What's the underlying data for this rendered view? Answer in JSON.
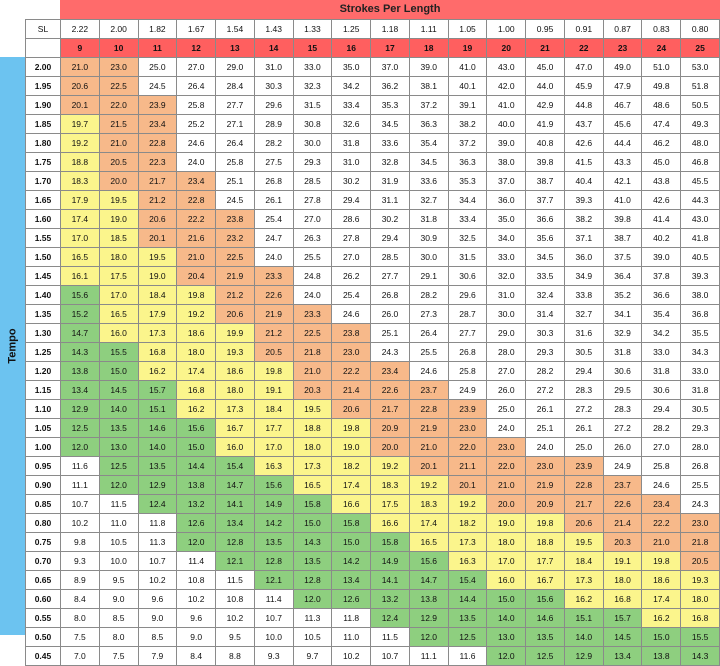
{
  "title": "Strokes Per Length",
  "axis_label": "Tempo",
  "sl_label": "SL",
  "sl_values": [
    "2.22",
    "2.00",
    "1.82",
    "1.67",
    "1.54",
    "1.43",
    "1.33",
    "1.25",
    "1.18",
    "1.11",
    "1.05",
    "1.00",
    "0.95",
    "0.91",
    "0.87",
    "0.83",
    "0.80"
  ],
  "strokes": [
    "9",
    "10",
    "11",
    "12",
    "13",
    "14",
    "15",
    "16",
    "17",
    "18",
    "19",
    "20",
    "21",
    "22",
    "23",
    "24",
    "25"
  ],
  "colors": {
    "white": "#ffffff",
    "yellow": "#fbf58c",
    "orange": "#f7b98a",
    "green": "#8ecf7f",
    "header_red": "#ff5f5f",
    "tempo_blue": "#6cc3f0"
  },
  "rows": [
    {
      "tempo": "2.00",
      "values": [
        "21.0",
        "23.0",
        "25.0",
        "27.0",
        "29.0",
        "31.0",
        "33.0",
        "35.0",
        "37.0",
        "39.0",
        "41.0",
        "43.0",
        "45.0",
        "47.0",
        "49.0",
        "51.0",
        "53.0"
      ]
    },
    {
      "tempo": "1.95",
      "values": [
        "20.6",
        "22.5",
        "24.5",
        "26.4",
        "28.4",
        "30.3",
        "32.3",
        "34.2",
        "36.2",
        "38.1",
        "40.1",
        "42.0",
        "44.0",
        "45.9",
        "47.9",
        "49.8",
        "51.8"
      ]
    },
    {
      "tempo": "1.90",
      "values": [
        "20.1",
        "22.0",
        "23.9",
        "25.8",
        "27.7",
        "29.6",
        "31.5",
        "33.4",
        "35.3",
        "37.2",
        "39.1",
        "41.0",
        "42.9",
        "44.8",
        "46.7",
        "48.6",
        "50.5"
      ]
    },
    {
      "tempo": "1.85",
      "values": [
        "19.7",
        "21.5",
        "23.4",
        "25.2",
        "27.1",
        "28.9",
        "30.8",
        "32.6",
        "34.5",
        "36.3",
        "38.2",
        "40.0",
        "41.9",
        "43.7",
        "45.6",
        "47.4",
        "49.3"
      ]
    },
    {
      "tempo": "1.80",
      "values": [
        "19.2",
        "21.0",
        "22.8",
        "24.6",
        "26.4",
        "28.2",
        "30.0",
        "31.8",
        "33.6",
        "35.4",
        "37.2",
        "39.0",
        "40.8",
        "42.6",
        "44.4",
        "46.2",
        "48.0"
      ]
    },
    {
      "tempo": "1.75",
      "values": [
        "18.8",
        "20.5",
        "22.3",
        "24.0",
        "25.8",
        "27.5",
        "29.3",
        "31.0",
        "32.8",
        "34.5",
        "36.3",
        "38.0",
        "39.8",
        "41.5",
        "43.3",
        "45.0",
        "46.8"
      ]
    },
    {
      "tempo": "1.70",
      "values": [
        "18.3",
        "20.0",
        "21.7",
        "23.4",
        "25.1",
        "26.8",
        "28.5",
        "30.2",
        "31.9",
        "33.6",
        "35.3",
        "37.0",
        "38.7",
        "40.4",
        "42.1",
        "43.8",
        "45.5"
      ]
    },
    {
      "tempo": "1.65",
      "values": [
        "17.9",
        "19.5",
        "21.2",
        "22.8",
        "24.5",
        "26.1",
        "27.8",
        "29.4",
        "31.1",
        "32.7",
        "34.4",
        "36.0",
        "37.7",
        "39.3",
        "41.0",
        "42.6",
        "44.3"
      ]
    },
    {
      "tempo": "1.60",
      "values": [
        "17.4",
        "19.0",
        "20.6",
        "22.2",
        "23.8",
        "25.4",
        "27.0",
        "28.6",
        "30.2",
        "31.8",
        "33.4",
        "35.0",
        "36.6",
        "38.2",
        "39.8",
        "41.4",
        "43.0"
      ]
    },
    {
      "tempo": "1.55",
      "values": [
        "17.0",
        "18.5",
        "20.1",
        "21.6",
        "23.2",
        "24.7",
        "26.3",
        "27.8",
        "29.4",
        "30.9",
        "32.5",
        "34.0",
        "35.6",
        "37.1",
        "38.7",
        "40.2",
        "41.8"
      ]
    },
    {
      "tempo": "1.50",
      "values": [
        "16.5",
        "18.0",
        "19.5",
        "21.0",
        "22.5",
        "24.0",
        "25.5",
        "27.0",
        "28.5",
        "30.0",
        "31.5",
        "33.0",
        "34.5",
        "36.0",
        "37.5",
        "39.0",
        "40.5"
      ]
    },
    {
      "tempo": "1.45",
      "values": [
        "16.1",
        "17.5",
        "19.0",
        "20.4",
        "21.9",
        "23.3",
        "24.8",
        "26.2",
        "27.7",
        "29.1",
        "30.6",
        "32.0",
        "33.5",
        "34.9",
        "36.4",
        "37.8",
        "39.3"
      ]
    },
    {
      "tempo": "1.40",
      "values": [
        "15.6",
        "17.0",
        "18.4",
        "19.8",
        "21.2",
        "22.6",
        "24.0",
        "25.4",
        "26.8",
        "28.2",
        "29.6",
        "31.0",
        "32.4",
        "33.8",
        "35.2",
        "36.6",
        "38.0"
      ]
    },
    {
      "tempo": "1.35",
      "values": [
        "15.2",
        "16.5",
        "17.9",
        "19.2",
        "20.6",
        "21.9",
        "23.3",
        "24.6",
        "26.0",
        "27.3",
        "28.7",
        "30.0",
        "31.4",
        "32.7",
        "34.1",
        "35.4",
        "36.8"
      ]
    },
    {
      "tempo": "1.30",
      "values": [
        "14.7",
        "16.0",
        "17.3",
        "18.6",
        "19.9",
        "21.2",
        "22.5",
        "23.8",
        "25.1",
        "26.4",
        "27.7",
        "29.0",
        "30.3",
        "31.6",
        "32.9",
        "34.2",
        "35.5"
      ]
    },
    {
      "tempo": "1.25",
      "values": [
        "14.3",
        "15.5",
        "16.8",
        "18.0",
        "19.3",
        "20.5",
        "21.8",
        "23.0",
        "24.3",
        "25.5",
        "26.8",
        "28.0",
        "29.3",
        "30.5",
        "31.8",
        "33.0",
        "34.3"
      ]
    },
    {
      "tempo": "1.20",
      "values": [
        "13.8",
        "15.0",
        "16.2",
        "17.4",
        "18.6",
        "19.8",
        "21.0",
        "22.2",
        "23.4",
        "24.6",
        "25.8",
        "27.0",
        "28.2",
        "29.4",
        "30.6",
        "31.8",
        "33.0"
      ]
    },
    {
      "tempo": "1.15",
      "values": [
        "13.4",
        "14.5",
        "15.7",
        "16.8",
        "18.0",
        "19.1",
        "20.3",
        "21.4",
        "22.6",
        "23.7",
        "24.9",
        "26.0",
        "27.2",
        "28.3",
        "29.5",
        "30.6",
        "31.8"
      ]
    },
    {
      "tempo": "1.10",
      "values": [
        "12.9",
        "14.0",
        "15.1",
        "16.2",
        "17.3",
        "18.4",
        "19.5",
        "20.6",
        "21.7",
        "22.8",
        "23.9",
        "25.0",
        "26.1",
        "27.2",
        "28.3",
        "29.4",
        "30.5"
      ]
    },
    {
      "tempo": "1.05",
      "values": [
        "12.5",
        "13.5",
        "14.6",
        "15.6",
        "16.7",
        "17.7",
        "18.8",
        "19.8",
        "20.9",
        "21.9",
        "23.0",
        "24.0",
        "25.1",
        "26.1",
        "27.2",
        "28.2",
        "29.3"
      ]
    },
    {
      "tempo": "1.00",
      "values": [
        "12.0",
        "13.0",
        "14.0",
        "15.0",
        "16.0",
        "17.0",
        "18.0",
        "19.0",
        "20.0",
        "21.0",
        "22.0",
        "23.0",
        "24.0",
        "25.0",
        "26.0",
        "27.0",
        "28.0"
      ]
    },
    {
      "tempo": "0.95",
      "values": [
        "11.6",
        "12.5",
        "13.5",
        "14.4",
        "15.4",
        "16.3",
        "17.3",
        "18.2",
        "19.2",
        "20.1",
        "21.1",
        "22.0",
        "23.0",
        "23.9",
        "24.9",
        "25.8",
        "26.8"
      ]
    },
    {
      "tempo": "0.90",
      "values": [
        "11.1",
        "12.0",
        "12.9",
        "13.8",
        "14.7",
        "15.6",
        "16.5",
        "17.4",
        "18.3",
        "19.2",
        "20.1",
        "21.0",
        "21.9",
        "22.8",
        "23.7",
        "24.6",
        "25.5"
      ]
    },
    {
      "tempo": "0.85",
      "values": [
        "10.7",
        "11.5",
        "12.4",
        "13.2",
        "14.1",
        "14.9",
        "15.8",
        "16.6",
        "17.5",
        "18.3",
        "19.2",
        "20.0",
        "20.9",
        "21.7",
        "22.6",
        "23.4",
        "24.3"
      ]
    },
    {
      "tempo": "0.80",
      "values": [
        "10.2",
        "11.0",
        "11.8",
        "12.6",
        "13.4",
        "14.2",
        "15.0",
        "15.8",
        "16.6",
        "17.4",
        "18.2",
        "19.0",
        "19.8",
        "20.6",
        "21.4",
        "22.2",
        "23.0"
      ]
    },
    {
      "tempo": "0.75",
      "values": [
        "9.8",
        "10.5",
        "11.3",
        "12.0",
        "12.8",
        "13.5",
        "14.3",
        "15.0",
        "15.8",
        "16.5",
        "17.3",
        "18.0",
        "18.8",
        "19.5",
        "20.3",
        "21.0",
        "21.8"
      ]
    },
    {
      "tempo": "0.70",
      "values": [
        "9.3",
        "10.0",
        "10.7",
        "11.4",
        "12.1",
        "12.8",
        "13.5",
        "14.2",
        "14.9",
        "15.6",
        "16.3",
        "17.0",
        "17.7",
        "18.4",
        "19.1",
        "19.8",
        "20.5"
      ]
    },
    {
      "tempo": "0.65",
      "values": [
        "8.9",
        "9.5",
        "10.2",
        "10.8",
        "11.5",
        "12.1",
        "12.8",
        "13.4",
        "14.1",
        "14.7",
        "15.4",
        "16.0",
        "16.7",
        "17.3",
        "18.0",
        "18.6",
        "19.3"
      ]
    },
    {
      "tempo": "0.60",
      "values": [
        "8.4",
        "9.0",
        "9.6",
        "10.2",
        "10.8",
        "11.4",
        "12.0",
        "12.6",
        "13.2",
        "13.8",
        "14.4",
        "15.0",
        "15.6",
        "16.2",
        "16.8",
        "17.4",
        "18.0"
      ]
    },
    {
      "tempo": "0.55",
      "values": [
        "8.0",
        "8.5",
        "9.0",
        "9.6",
        "10.2",
        "10.7",
        "11.3",
        "11.8",
        "12.4",
        "12.9",
        "13.5",
        "14.0",
        "14.6",
        "15.1",
        "15.7",
        "16.2",
        "16.8"
      ]
    },
    {
      "tempo": "0.50",
      "values": [
        "7.5",
        "8.0",
        "8.5",
        "9.0",
        "9.5",
        "10.0",
        "10.5",
        "11.0",
        "11.5",
        "12.0",
        "12.5",
        "13.0",
        "13.5",
        "14.0",
        "14.5",
        "15.0",
        "15.5"
      ]
    },
    {
      "tempo": "0.45",
      "values": [
        "7.0",
        "7.5",
        "7.9",
        "8.4",
        "8.8",
        "9.3",
        "9.7",
        "10.2",
        "10.7",
        "11.1",
        "11.6",
        "12.0",
        "12.5",
        "12.9",
        "13.4",
        "13.8",
        "14.3"
      ]
    }
  ]
}
